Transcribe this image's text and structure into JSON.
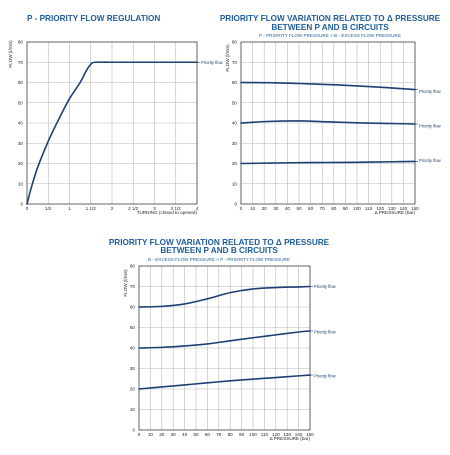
{
  "chart_data": [
    {
      "type": "line",
      "title": "P - PRIORITY FLOW REGULATION",
      "subtitle": "",
      "xlabel": "TURNING (closed to opened)",
      "ylabel": "FLOW (l/min)",
      "xlim": [
        0,
        4
      ],
      "ylim": [
        0,
        80
      ],
      "x_ticks": [
        0,
        0.5,
        1,
        1.5,
        2,
        2.5,
        3,
        3.5,
        4
      ],
      "x_tick_labels": [
        "0",
        "1/2",
        "1",
        "1 1/2",
        "2",
        "2 1/2",
        "3",
        "3 1/2",
        "4"
      ],
      "y_ticks": [
        0,
        10,
        20,
        30,
        40,
        50,
        60,
        70,
        80
      ],
      "grid": true,
      "series": [
        {
          "name": "Priority flow",
          "x": [
            0,
            0.1,
            0.25,
            0.5,
            0.75,
            1,
            1.25,
            1.4,
            1.5,
            1.6,
            2,
            2.5,
            3,
            3.5,
            4
          ],
          "y": [
            0,
            8,
            18,
            31,
            42,
            52,
            60,
            66,
            69,
            70,
            70,
            70,
            70,
            70,
            70
          ]
        }
      ]
    },
    {
      "type": "line",
      "title": "PRIORITY FLOW VARIATION RELATED TO Δ PRESSURE",
      "title2": "BETWEEN P AND B CIRCUITS",
      "subtitle": "P - PRIORITY FLOW PRESSURE > B - EXCESS FLOW PRESSURE",
      "xlabel": "Δ PRESSURE (bar)",
      "ylabel": "FLOW (l/min)",
      "xlim": [
        0,
        150
      ],
      "ylim": [
        0,
        80
      ],
      "x_ticks": [
        0,
        10,
        20,
        30,
        40,
        50,
        60,
        70,
        80,
        90,
        100,
        110,
        120,
        130,
        140,
        150
      ],
      "y_ticks": [
        0,
        10,
        20,
        30,
        40,
        50,
        60,
        70,
        80
      ],
      "grid": true,
      "series": [
        {
          "name": "Priority flow",
          "x": [
            0,
            25,
            50,
            75,
            100,
            125,
            150
          ],
          "y": [
            60,
            59.9,
            59.5,
            59,
            58.3,
            57.5,
            56.5
          ]
        },
        {
          "name": "Priority flow",
          "x": [
            0,
            25,
            50,
            75,
            100,
            125,
            150
          ],
          "y": [
            40,
            40.8,
            41,
            40.6,
            40.1,
            39.8,
            39.5
          ]
        },
        {
          "name": "Priority flow",
          "x": [
            0,
            25,
            50,
            75,
            100,
            125,
            150
          ],
          "y": [
            20,
            20.2,
            20.4,
            20.5,
            20.6,
            20.8,
            21
          ]
        }
      ]
    },
    {
      "type": "line",
      "title": "PRIORITY FLOW VARIATION RELATED TO Δ PRESSURE",
      "title2": "BETWEEN P AND B CIRCUITS",
      "subtitle": "B - EXCESS FLOW PRESSURE > P - PRIORITY FLOW PRESSURE",
      "xlabel": "Δ PRESSURE (bar)",
      "ylabel": "FLOW (l/min)",
      "xlim": [
        0,
        150
      ],
      "ylim": [
        0,
        80
      ],
      "x_ticks": [
        0,
        10,
        20,
        30,
        40,
        50,
        60,
        70,
        80,
        90,
        100,
        110,
        120,
        130,
        140,
        150
      ],
      "y_ticks": [
        0,
        10,
        20,
        30,
        40,
        50,
        60,
        70,
        80
      ],
      "grid": true,
      "series": [
        {
          "name": "Priority flow",
          "x": [
            0,
            20,
            40,
            60,
            80,
            100,
            120,
            140,
            150
          ],
          "y": [
            60,
            60.3,
            61.5,
            64,
            67,
            68.8,
            69.5,
            69.8,
            70
          ]
        },
        {
          "name": "Priority flow",
          "x": [
            0,
            20,
            40,
            60,
            80,
            100,
            120,
            140,
            150
          ],
          "y": [
            40,
            40.3,
            41,
            42,
            43.5,
            45,
            46.4,
            47.8,
            48.3
          ]
        },
        {
          "name": "Priority flow",
          "x": [
            0,
            20,
            40,
            60,
            80,
            100,
            120,
            140,
            150
          ],
          "y": [
            20,
            21,
            22,
            23,
            24,
            24.8,
            25.6,
            26.4,
            26.8
          ]
        }
      ]
    }
  ]
}
